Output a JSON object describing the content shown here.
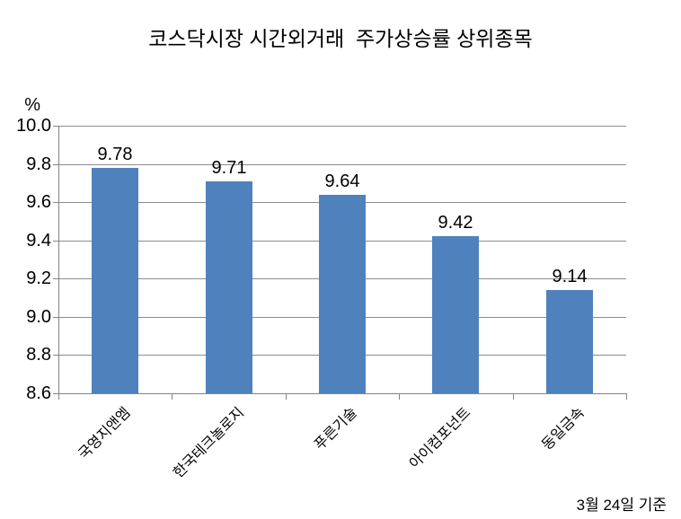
{
  "title": "코스닥시장 시간외거래  주가상승률 상위종목",
  "footnote": "3월 24일 기준",
  "chart_data": {
    "type": "bar",
    "title": "코스닥시장 시간외거래  주가상승률 상위종목",
    "unit_label": "%",
    "categories": [
      "국영지앤엠",
      "한국테크놀로지",
      "푸른기술",
      "아이컴포넌트",
      "동일금속"
    ],
    "values": [
      9.78,
      9.71,
      9.64,
      9.42,
      9.14
    ],
    "data_labels": [
      "9.78",
      "9.71",
      "9.64",
      "9.42",
      "9.14"
    ],
    "ylim": [
      8.6,
      10.0
    ],
    "ytick_step": 0.2,
    "ytick_labels": [
      "10.0",
      "9.8",
      "9.6",
      "9.4",
      "9.2",
      "9.0",
      "8.8",
      "8.6"
    ],
    "xlabel": "",
    "ylabel": "%",
    "grid": true,
    "legend": "none",
    "annotation": "3월 24일 기준",
    "bar_color": "#4f81bd",
    "gridline_color": "#8c8c8c",
    "axis_color": "#848484",
    "text_color": "#000000"
  }
}
